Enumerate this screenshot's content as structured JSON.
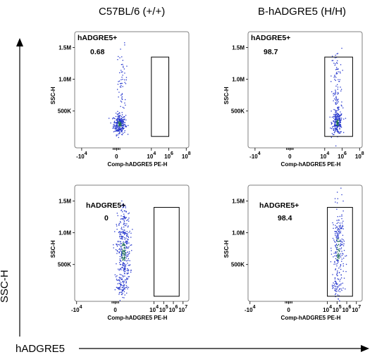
{
  "columns": [
    "C57BL/6 (+/+)",
    "B-hADGRE5 (H/H)"
  ],
  "outer_axes": {
    "y_label": "SSC-H",
    "x_label": "hADGRE5"
  },
  "colors": {
    "dots": "#2233cc",
    "dense": "#1a6b55",
    "frame": "#808080",
    "gate": "#000000"
  },
  "chart_data": [
    {
      "type": "scatter",
      "panel": "C57BL/6 (+/+) row 1",
      "xlabel": "Comp-hADGRE5 PE-H",
      "ylabel": "SSC-H",
      "x_ticks": [
        "-10^4",
        "0",
        "10^4",
        "10^6",
        "10^8"
      ],
      "y_ticks": [
        "1.5M",
        "1.0M",
        "500K"
      ],
      "gate": {
        "name": "hADGRE5+",
        "value": "0.68",
        "x_range": [
          "10^4",
          "10^6"
        ],
        "y_range": [
          100000,
          1350000
        ]
      },
      "populations": [
        {
          "x_log": 0.3,
          "y": 300000,
          "spread_x": 0.35,
          "spread_y": 80000,
          "count": 260
        },
        {
          "x_log": 0.6,
          "y": 1000000,
          "spread_x": 0.3,
          "spread_y": 250000,
          "count": 45
        },
        {
          "x_log": 0.4,
          "y": 650000,
          "spread_x": 0.3,
          "spread_y": 150000,
          "count": 20
        }
      ]
    },
    {
      "type": "scatter",
      "panel": "B-hADGRE5 (H/H) row 1",
      "xlabel": "Comp-hADGRE5 PE-H",
      "ylabel": "SSC-H",
      "x_ticks": [
        "-10^4",
        "0",
        "10^4",
        "10^6",
        "10^8"
      ],
      "y_ticks": [
        "1.5M",
        "1.0M",
        "500K"
      ],
      "gate": {
        "name": "hADGRE5+",
        "value": "98.7",
        "x_range": [
          "10^4",
          "10^7.2"
        ],
        "y_range": [
          100000,
          1350000
        ]
      },
      "populations": [
        {
          "x_log": 5.4,
          "y": 320000,
          "spread_x": 0.3,
          "spread_y": 90000,
          "count": 230
        },
        {
          "x_log": 5.3,
          "y": 1050000,
          "spread_x": 0.3,
          "spread_y": 220000,
          "count": 55
        },
        {
          "x_log": 5.3,
          "y": 650000,
          "spread_x": 0.35,
          "spread_y": 150000,
          "count": 40
        }
      ]
    },
    {
      "type": "scatter",
      "panel": "C57BL/6 (+/+) row 2",
      "xlabel": "Comp-hADGRE5 PE-H",
      "ylabel": "SSC-H",
      "x_ticks": [
        "-10^4",
        "0",
        "10^4",
        "10^5",
        "10^6",
        "10^7"
      ],
      "y_ticks": [
        "1.5M",
        "1.0M",
        "500K"
      ],
      "gate": {
        "name": "hADGRE5+",
        "value": "0",
        "x_range": [
          "10^4",
          "10^6.6"
        ],
        "y_range": [
          0,
          1400000
        ]
      },
      "populations": [
        {
          "x_log": 0.8,
          "y": 700000,
          "spread_x": 0.35,
          "spread_y": 300000,
          "count": 340
        },
        {
          "x_log": 0.6,
          "y": 150000,
          "spread_x": 0.3,
          "spread_y": 80000,
          "count": 60
        },
        {
          "x_log": 0.9,
          "y": 1300000,
          "spread_x": 0.2,
          "spread_y": 100000,
          "count": 30
        }
      ]
    },
    {
      "type": "scatter",
      "panel": "B-hADGRE5 (H/H) row 2",
      "xlabel": "Comp-hADGRE5 PE-H",
      "ylabel": "SSC-H",
      "x_ticks": [
        "-10^4",
        "0",
        "10^4",
        "10^5",
        "10^6",
        "10^7"
      ],
      "y_ticks": [
        "1.5M",
        "1.0M",
        "500K"
      ],
      "gate": {
        "name": "hADGRE5+",
        "value": "98.4",
        "x_range": [
          "10^4",
          "10^6.6"
        ],
        "y_range": [
          0,
          1400000
        ]
      },
      "populations": [
        {
          "x_log": 5.1,
          "y": 750000,
          "spread_x": 0.3,
          "spread_y": 330000,
          "count": 230
        },
        {
          "x_log": 4.9,
          "y": 150000,
          "spread_x": 0.3,
          "spread_y": 70000,
          "count": 40
        }
      ]
    }
  ]
}
